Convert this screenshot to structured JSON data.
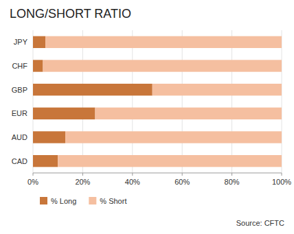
{
  "chart_data": {
    "type": "bar",
    "orientation": "horizontal",
    "stacked": true,
    "title": "LONG/SHORT RATIO",
    "categories": [
      "JPY",
      "CHF",
      "GBP",
      "EUR",
      "AUD",
      "CAD"
    ],
    "series": [
      {
        "name": "% Long",
        "color": "#C8763A",
        "values": [
          5,
          4,
          48,
          25,
          13,
          10
        ]
      },
      {
        "name": "% Short",
        "color": "#F5BFA0",
        "values": [
          95,
          96,
          52,
          75,
          87,
          90
        ]
      }
    ],
    "xlim": [
      0,
      100
    ],
    "xticks": [
      {
        "value": 0,
        "label": "0%"
      },
      {
        "value": 20,
        "label": "20%"
      },
      {
        "value": 40,
        "label": "40%"
      },
      {
        "value": 60,
        "label": "60%"
      },
      {
        "value": 80,
        "label": "80%"
      },
      {
        "value": 100,
        "label": "100%"
      }
    ],
    "grid": true,
    "legend": "bottom",
    "annotations": [
      "Source: CFTC"
    ]
  }
}
